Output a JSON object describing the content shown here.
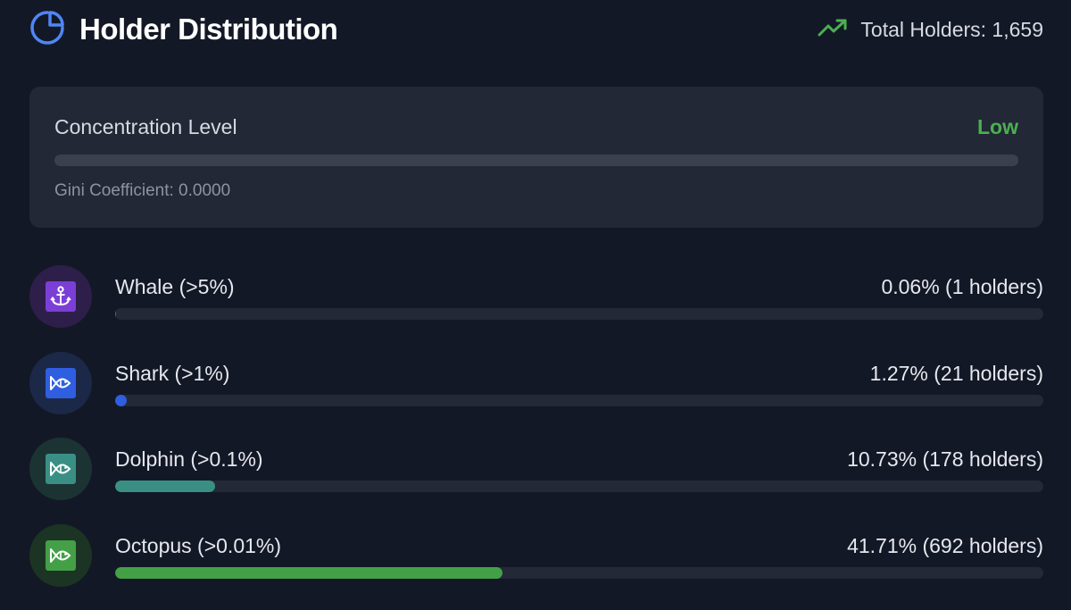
{
  "header": {
    "title": "Holder Distribution",
    "title_icon": "pie-chart-icon",
    "trend_icon": "trending-up-icon",
    "total_holders": "Total Holders: 1,659"
  },
  "concentration": {
    "label": "Concentration Level",
    "level": "Low",
    "level_color": "#4caf50",
    "fill_fraction": 0,
    "gini": "Gini Coefficient: 0.0000"
  },
  "tiers": [
    {
      "name": "Whale (>5%)",
      "stat": "0.06% (1 holders)",
      "percent": 0.06,
      "icon": "anchor-icon",
      "color": "#7b3fd6",
      "circle_bg": "#2d1f4a"
    },
    {
      "name": "Shark (>1%)",
      "stat": "1.27% (21 holders)",
      "percent": 1.27,
      "icon": "fish-icon",
      "color": "#2f5fe0",
      "circle_bg": "#1b2848"
    },
    {
      "name": "Dolphin (>0.1%)",
      "stat": "10.73% (178 holders)",
      "percent": 10.73,
      "icon": "fish-icon",
      "color": "#3a8f85",
      "circle_bg": "#1c3333"
    },
    {
      "name": "Octopus (>0.01%)",
      "stat": "41.71% (692 holders)",
      "percent": 41.71,
      "icon": "fish-icon",
      "color": "#43a047",
      "circle_bg": "#1c3424"
    }
  ]
}
